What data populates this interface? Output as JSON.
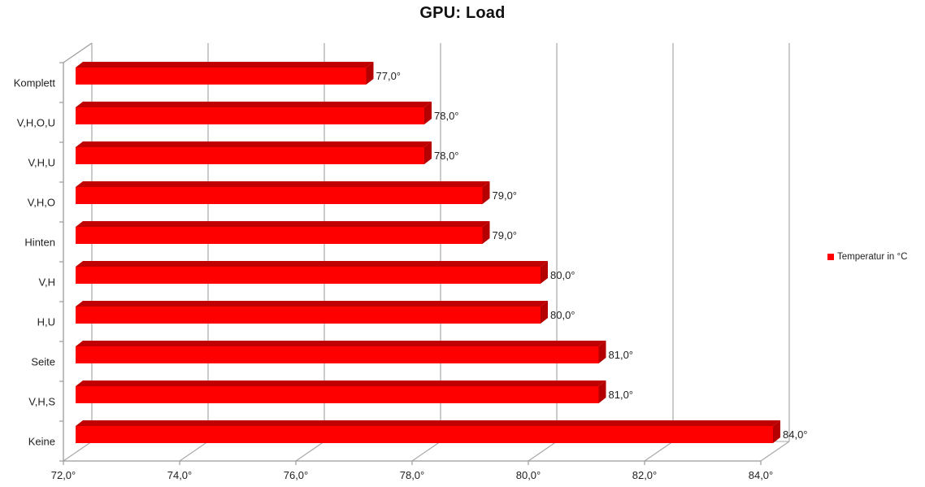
{
  "title": "GPU: Load",
  "legend": {
    "label": "Temperatur in °C"
  },
  "colors": {
    "bar_front": "#fe0000",
    "bar_top": "#c00000",
    "bar_side": "#b40000",
    "gridline": "#a8a8a8",
    "axis": "#9b9b9b",
    "text": "#1f1f1f",
    "title": "#111111",
    "background": "#ffffff"
  },
  "chart_data": {
    "type": "bar",
    "style": "3d",
    "orientation": "horizontal",
    "title": "GPU: Load",
    "series_name": "Temperatur in °C",
    "categories": [
      "Komplett",
      "V,H,O,U",
      "V,H,U",
      "V,H,O",
      "Hinten",
      "V,H",
      "H,U",
      "Seite",
      "V,H,S",
      "Keine"
    ],
    "values": [
      77,
      78,
      78,
      79,
      79,
      80,
      80,
      81,
      81,
      84
    ],
    "value_labels": [
      "77,0°",
      "78,0°",
      "78,0°",
      "79,0°",
      "79,0°",
      "80,0°",
      "80,0°",
      "81,0°",
      "81,0°",
      "84,0°"
    ],
    "xlabel": "",
    "ylabel": "",
    "xlim": [
      72,
      84
    ],
    "x_ticks": [
      72,
      74,
      76,
      78,
      80,
      82,
      84
    ],
    "x_tick_labels": [
      "72,0°",
      "74,0°",
      "76,0°",
      "78,0°",
      "80,0°",
      "82,0°",
      "84,0°"
    ],
    "grid": "vertical-backwall",
    "legend_position": "right"
  }
}
